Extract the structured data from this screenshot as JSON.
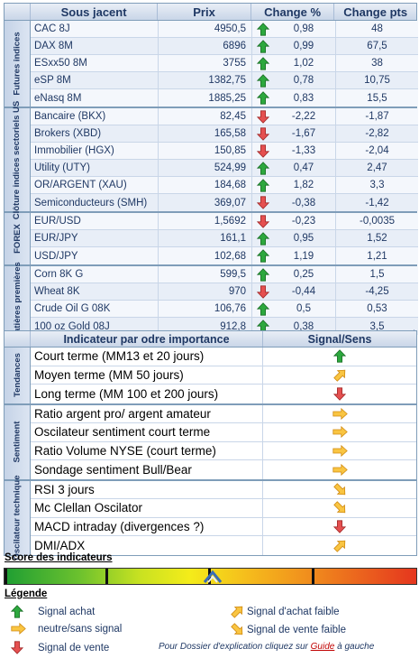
{
  "colors": {
    "up": "#28A038",
    "down": "#E04848",
    "neutral": "#F5A623",
    "header": "#1F3864"
  },
  "market": {
    "headers": [
      "Sous jacent",
      "Prix",
      "Change %",
      "Change pts"
    ],
    "groups": [
      {
        "label": "Futures indices",
        "rows": [
          {
            "name": "CAC 8J",
            "price": "4950,5",
            "dir": "up",
            "pct": "0,98",
            "pts": "48"
          },
          {
            "name": "DAX 8M",
            "price": "6896",
            "dir": "up",
            "pct": "0,99",
            "pts": "67,5"
          },
          {
            "name": "ESxx50 8M",
            "price": "3755",
            "dir": "up",
            "pct": "1,02",
            "pts": "38"
          },
          {
            "name": "eSP 8M",
            "price": "1382,75",
            "dir": "up",
            "pct": "0,78",
            "pts": "10,75"
          },
          {
            "name": "eNasq 8M",
            "price": "1885,25",
            "dir": "up",
            "pct": "0,83",
            "pts": "15,5"
          }
        ]
      },
      {
        "label": "Clôture indices sectoriels US",
        "rows": [
          {
            "name": "Bancaire (BKX)",
            "price": "82,45",
            "dir": "down",
            "pct": "-2,22",
            "pts": "-1,87"
          },
          {
            "name": "Brokers (XBD)",
            "price": "165,58",
            "dir": "down",
            "pct": "-1,67",
            "pts": "-2,82"
          },
          {
            "name": "Immobilier (HGX)",
            "price": "150,85",
            "dir": "down",
            "pct": "-1,33",
            "pts": "-2,04"
          },
          {
            "name": "Utility (UTY)",
            "price": "524,99",
            "dir": "up",
            "pct": "0,47",
            "pts": "2,47"
          },
          {
            "name": "OR/ARGENT (XAU)",
            "price": "184,68",
            "dir": "up",
            "pct": "1,82",
            "pts": "3,3"
          },
          {
            "name": "Semiconducteurs (SMH)",
            "price": "369,07",
            "dir": "down",
            "pct": "-0,38",
            "pts": "-1,42"
          }
        ]
      },
      {
        "label": "FOREX",
        "rows": [
          {
            "name": "EUR/USD",
            "price": "1,5692",
            "dir": "down",
            "pct": "-0,23",
            "pts": "-0,0035"
          },
          {
            "name": "EUR/JPY",
            "price": "161,1",
            "dir": "up",
            "pct": "0,95",
            "pts": "1,52"
          },
          {
            "name": "USD/JPY",
            "price": "102,68",
            "dir": "up",
            "pct": "1,19",
            "pts": "1,21"
          }
        ]
      },
      {
        "label": "Matières premières",
        "rows": [
          {
            "name": "Corn 8K G",
            "price": "599,5",
            "dir": "up",
            "pct": "0,25",
            "pts": "1,5"
          },
          {
            "name": "Wheat 8K",
            "price": "970",
            "dir": "down",
            "pct": "-0,44",
            "pts": "-4,25"
          },
          {
            "name": "Crude Oil G 08K",
            "price": "106,76",
            "dir": "up",
            "pct": "0,5",
            "pts": "0,53"
          },
          {
            "name": "100 oz Gold 08J",
            "price": "912,8",
            "dir": "up",
            "pct": "0,38",
            "pts": "3,5"
          }
        ]
      }
    ]
  },
  "indicators": {
    "headers": [
      "Indicateur par odre importance",
      "Signal/Sens"
    ],
    "groups": [
      {
        "label": "Tendances",
        "rows": [
          {
            "name": "Court terme (MM13 et 20 jours)",
            "signal": "up"
          },
          {
            "name": "Moyen terme (MM 50 jours)",
            "signal": "weak-up"
          },
          {
            "name": "Long terme (MM 100 et 200 jours)",
            "signal": "down"
          }
        ]
      },
      {
        "label": "Sentiment",
        "rows": [
          {
            "name": "Ratio argent pro/ argent amateur",
            "signal": "neutral"
          },
          {
            "name": "Oscilateur sentiment court terme",
            "signal": "neutral"
          },
          {
            "name": "Ratio Volume NYSE (court terme)",
            "signal": "neutral"
          },
          {
            "name": "Sondage sentiment Bull/Bear",
            "signal": "neutral"
          }
        ]
      },
      {
        "label": "Oscilateur technique",
        "rows": [
          {
            "name": "RSI 3 jours",
            "signal": "weak-down"
          },
          {
            "name": "Mc Clellan Oscilator",
            "signal": "weak-down"
          },
          {
            "name": "MACD intraday (divergences ?)",
            "signal": "down"
          },
          {
            "name": "DMI/ADX",
            "signal": "weak-up"
          }
        ]
      }
    ]
  },
  "score": {
    "title": "Score des indicateurs",
    "level": 0.52
  },
  "legend": {
    "title": "Légende",
    "items": [
      {
        "icon": "up",
        "label": "Signal achat"
      },
      {
        "icon": "neutral",
        "label": "neutre/sans signal"
      },
      {
        "icon": "down",
        "label": "Signal de vente"
      },
      {
        "icon": "weak-up",
        "label": "Signal d'achat faible"
      },
      {
        "icon": "weak-down",
        "label": "Signal de vente faible"
      }
    ],
    "note_prefix": "Pour Dossier d'explication cliquez sur",
    "note_link": "Guide",
    "note_suffix": "à gauche"
  }
}
